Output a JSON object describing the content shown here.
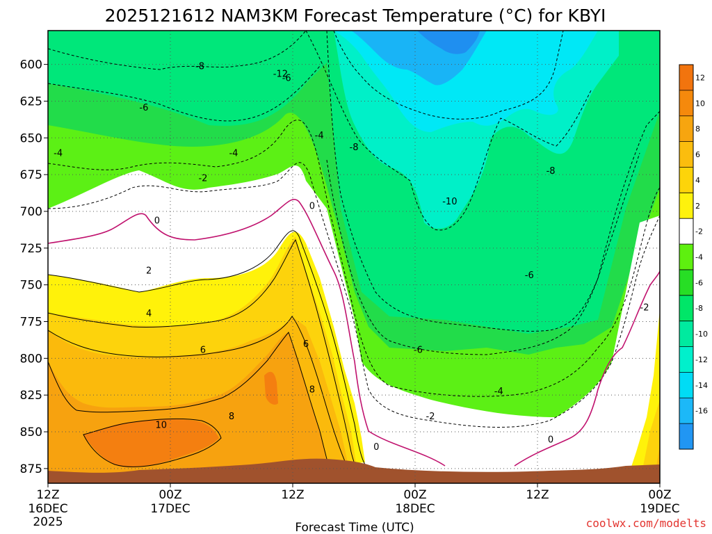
{
  "chart_data": {
    "type": "contour",
    "title": "2025121612 NAM3KM Forecast Temperature (°C) for KBYI",
    "xlabel": "Forecast Time (UTC)",
    "credit": "coolwx.com/modelts",
    "y_ticks": [
      "600",
      "625",
      "650",
      "675",
      "700",
      "725",
      "750",
      "775",
      "800",
      "825",
      "850",
      "875"
    ],
    "y_values": [
      600,
      625,
      650,
      675,
      700,
      725,
      750,
      775,
      800,
      825,
      850,
      875
    ],
    "ylim": [
      577,
      885
    ],
    "y_axis": "pressure (hPa), increasing downward",
    "x_ticks": [
      {
        "time": "12Z",
        "day": "16DEC",
        "year": "2025",
        "hours": 0
      },
      {
        "time": "00Z",
        "day": "17DEC",
        "year": "",
        "hours": 12
      },
      {
        "time": "12Z",
        "day": "",
        "year": "",
        "hours": 24
      },
      {
        "time": "00Z",
        "day": "18DEC",
        "year": "",
        "hours": 36
      },
      {
        "time": "12Z",
        "day": "",
        "year": "",
        "hours": 48
      },
      {
        "time": "00Z",
        "day": "19DEC",
        "year": "",
        "hours": 60
      }
    ],
    "xlim_hours": [
      0,
      60
    ],
    "grid": true,
    "colorbar": {
      "labels": [
        "12",
        "10",
        "8",
        "6",
        "4",
        "2",
        "-2",
        "-4",
        "-6",
        "-8",
        "-10",
        "-12",
        "-14",
        "-16"
      ],
      "colors": [
        "#f2740e",
        "#f5890c",
        "#f7a50f",
        "#fbbd0e",
        "#fdd40a",
        "#fef20d",
        "#ffffff",
        "#5ef00f",
        "#27de25",
        "#00e668",
        "#00ea9f",
        "#00f0cc",
        "#00dcf5",
        "#1cb8f8",
        "#2196f3"
      ]
    },
    "temperature_bands": [
      {
        "range": "-16 to -14",
        "color": "#1f8ff0"
      },
      {
        "range": "-14 to -12",
        "color": "#19b4f6"
      },
      {
        "range": "-12 to -10",
        "color": "#00e8f6"
      },
      {
        "range": "-10 to -8",
        "color": "#00f0c8"
      },
      {
        "range": "-8 to -6",
        "color": "#00e77a"
      },
      {
        "range": "-6 to -4",
        "color": "#22dc4a"
      },
      {
        "range": "-4 to -2",
        "color": "#5cf015"
      },
      {
        "range": "-2 to 0",
        "color": "#ffffff"
      },
      {
        "range": "0 to 2",
        "color": "#ffffff"
      },
      {
        "range": "2 to 4",
        "color": "#fff20a"
      },
      {
        "range": "4 to 6",
        "color": "#fdd30c"
      },
      {
        "range": "6 to 8",
        "color": "#fbba0c"
      },
      {
        "range": "8 to 10",
        "color": "#f7a20f"
      },
      {
        "range": "10 to 12",
        "color": "#f47f10"
      }
    ],
    "contour_labels": [
      {
        "text": "-12",
        "hours": 22.8,
        "hpa": 606
      },
      {
        "text": "-8",
        "hours": 14.9,
        "hpa": 601
      },
      {
        "text": "-6",
        "hours": 23.4,
        "hpa": 609
      },
      {
        "text": "-6",
        "hours": 9.4,
        "hpa": 629
      },
      {
        "text": "-4",
        "hours": 26.6,
        "hpa": 648
      },
      {
        "text": "-8",
        "hours": 30.0,
        "hpa": 656
      },
      {
        "text": "-4",
        "hours": 1.0,
        "hpa": 660
      },
      {
        "text": "-4",
        "hours": 18.2,
        "hpa": 660
      },
      {
        "text": "-2",
        "hours": 15.2,
        "hpa": 677
      },
      {
        "text": "-10",
        "hours": 39.4,
        "hpa": 693
      },
      {
        "text": "-8",
        "hours": 49.3,
        "hpa": 672
      },
      {
        "text": "0",
        "hours": 25.9,
        "hpa": 696
      },
      {
        "text": "0",
        "hours": 10.7,
        "hpa": 706
      },
      {
        "text": "-6",
        "hours": 47.2,
        "hpa": 743
      },
      {
        "text": "-2",
        "hours": 58.5,
        "hpa": 765
      },
      {
        "text": "2",
        "hours": 9.9,
        "hpa": 740
      },
      {
        "text": "4",
        "hours": 9.9,
        "hpa": 769
      },
      {
        "text": "6",
        "hours": 15.2,
        "hpa": 794
      },
      {
        "text": "6",
        "hours": 25.3,
        "hpa": 790
      },
      {
        "text": "-6",
        "hours": 36.3,
        "hpa": 794
      },
      {
        "text": "-4",
        "hours": 44.2,
        "hpa": 822
      },
      {
        "text": "8",
        "hours": 25.9,
        "hpa": 821
      },
      {
        "text": "8",
        "hours": 18.0,
        "hpa": 839
      },
      {
        "text": "-2",
        "hours": 37.5,
        "hpa": 839
      },
      {
        "text": "10",
        "hours": 11.1,
        "hpa": 845
      },
      {
        "text": "0",
        "hours": 32.2,
        "hpa": 860
      },
      {
        "text": "0",
        "hours": 49.3,
        "hpa": 855
      }
    ]
  }
}
